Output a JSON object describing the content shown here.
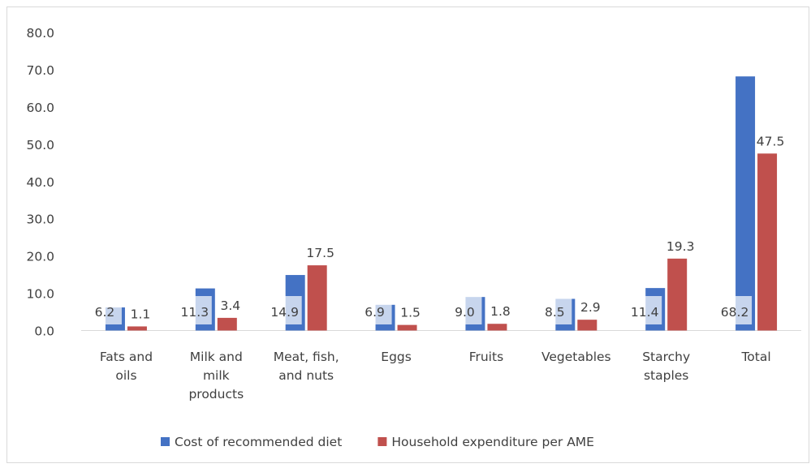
{
  "chart_data": {
    "type": "bar",
    "categories": [
      [
        "Fats and",
        "oils"
      ],
      [
        "Milk and",
        "milk",
        "products"
      ],
      [
        "Meat, fish,",
        "and nuts"
      ],
      [
        "Eggs"
      ],
      [
        "Fruits"
      ],
      [
        "Vegetables"
      ],
      [
        "Starchy",
        "staples"
      ],
      [
        "Total"
      ]
    ],
    "series": [
      {
        "name": "Cost of recommended diet",
        "color": "#4472c4",
        "values": [
          6.2,
          11.3,
          14.9,
          6.9,
          9.0,
          8.5,
          11.4,
          68.2
        ],
        "labels": [
          "6.2",
          "11.3",
          "14.9",
          "6.9",
          "9.0",
          "8.5",
          "11.4",
          "68.2"
        ]
      },
      {
        "name": "Household expenditure per AME",
        "color": "#c0504d",
        "values": [
          1.1,
          3.4,
          17.5,
          1.5,
          1.8,
          2.9,
          19.3,
          47.5
        ],
        "labels": [
          "1.1",
          "3.4",
          "17.5",
          "1.5",
          "1.8",
          "2.9",
          "19.3",
          "47.5"
        ]
      }
    ],
    "ylim": [
      0,
      80
    ],
    "yticks": [
      "0.0",
      "10.0",
      "20.0",
      "30.0",
      "40.0",
      "50.0",
      "60.0",
      "70.0",
      "80.0"
    ],
    "grid": false,
    "legend": "bottom"
  }
}
